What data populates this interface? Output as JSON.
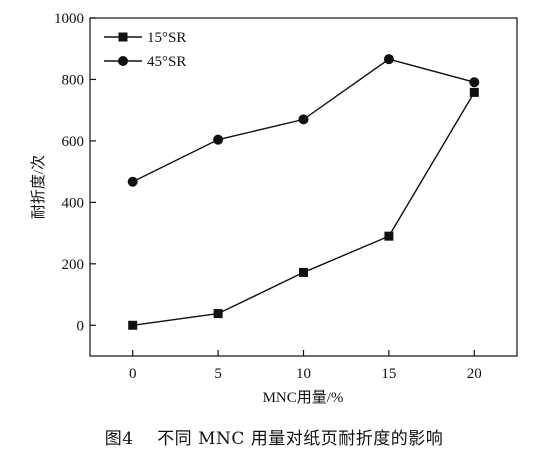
{
  "chart_data": {
    "type": "line",
    "title": "",
    "xlabel": "MNC用量/%",
    "ylabel": "耐折度/次",
    "xlim": [
      -2.5,
      22.5
    ],
    "ylim": [
      -100,
      1000
    ],
    "x_ticks": [
      0,
      5,
      10,
      15,
      20
    ],
    "y_ticks": [
      0,
      200,
      400,
      600,
      800,
      1000
    ],
    "x_tick_labels": [
      "0",
      "5",
      "10",
      "15",
      "20"
    ],
    "y_tick_labels": [
      "0",
      "200",
      "400",
      "600",
      "800",
      "1000"
    ],
    "grid": false,
    "legend_position": "top-left",
    "series": [
      {
        "name": "15°SR",
        "marker": "square",
        "color": "#111111",
        "x": [
          0,
          5,
          10,
          15,
          20
        ],
        "y": [
          0,
          38,
          172,
          290,
          758
        ]
      },
      {
        "name": "45°SR",
        "marker": "circle",
        "color": "#111111",
        "x": [
          0,
          5,
          10,
          15,
          20
        ],
        "y": [
          467,
          604,
          670,
          866,
          791
        ]
      }
    ]
  },
  "caption": {
    "label": "图4",
    "text": "不同 MNC 用量对纸页耐折度的影响"
  }
}
